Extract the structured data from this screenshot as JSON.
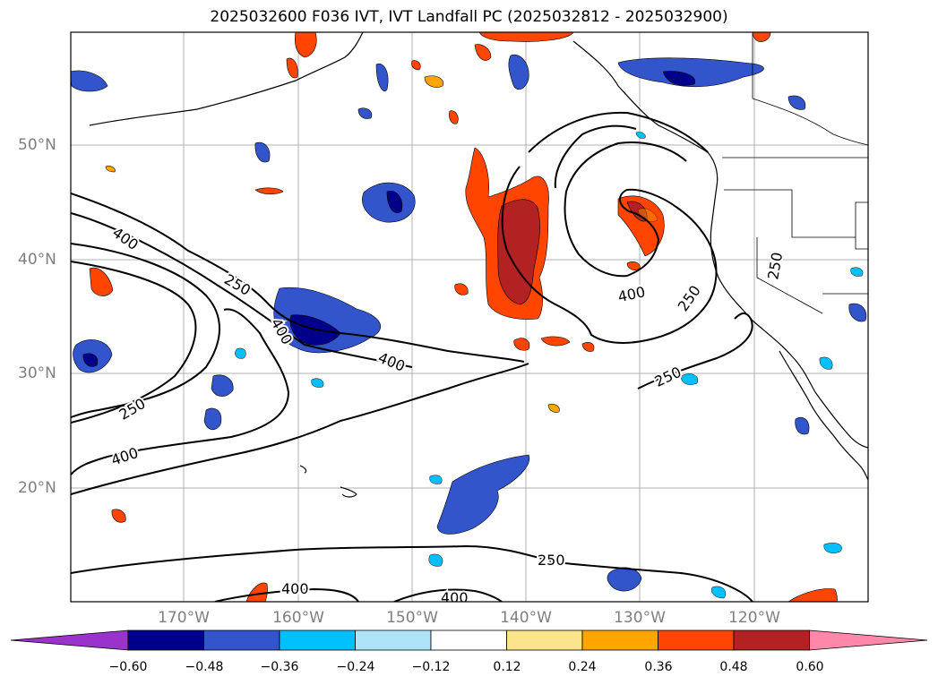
{
  "title": "2025032600 F036 IVT, IVT Landfall PC (2025032812 - 2025032900)",
  "lat_labels": [
    "50°N",
    "40°N",
    "30°N",
    "20°N"
  ],
  "lon_labels": [
    "170°W",
    "160°W",
    "150°W",
    "140°W",
    "130°W",
    "120°W"
  ],
  "contour_labels": [
    "400",
    "250",
    "400",
    "250",
    "400",
    "400",
    "400",
    "250",
    "250",
    "250",
    "250",
    "400",
    "400"
  ],
  "colorbar": {
    "ticks": [
      "−0.60",
      "−0.48",
      "−0.36",
      "−0.24",
      "−0.12",
      "0.12",
      "0.24",
      "0.36",
      "0.48",
      "0.60"
    ],
    "colors": [
      "#9933cc",
      "#00008b",
      "#3355cc",
      "#00bfff",
      "#aee4fa",
      "#ffffff",
      "#fbe48c",
      "#ffa500",
      "#ff4500",
      "#b22222",
      "#ff88aa"
    ]
  }
}
